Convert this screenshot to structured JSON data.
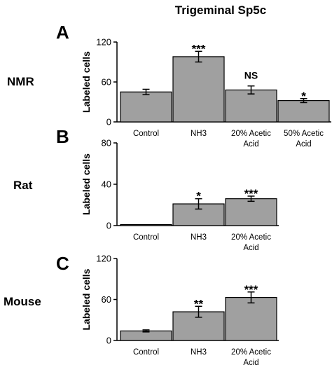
{
  "title": "Trigeminal Sp5c",
  "bar_color": "#a0a0a0",
  "chart_data": [
    {
      "type": "bar",
      "panel": "A",
      "species": "NMR",
      "ylabel": "Labeled cells",
      "ylim": [
        0,
        120
      ],
      "yticks": [
        0,
        60,
        120
      ],
      "categories": [
        [
          "Control"
        ],
        [
          "NH3"
        ],
        [
          "20% Acetic",
          "Acid"
        ],
        [
          "50% Acetic",
          "Acid"
        ]
      ],
      "values": [
        45,
        98,
        48,
        32
      ],
      "errors": [
        4,
        8,
        6,
        3
      ],
      "significance": [
        "",
        "***",
        "NS",
        "*"
      ]
    },
    {
      "type": "bar",
      "panel": "B",
      "species": "Rat",
      "ylabel": "Labeled cells",
      "ylim": [
        0,
        80
      ],
      "yticks": [
        0,
        40,
        80
      ],
      "categories": [
        [
          "Control"
        ],
        [
          "NH3"
        ],
        [
          "20% Acetic",
          "Acid"
        ]
      ],
      "values": [
        0,
        21,
        26
      ],
      "errors": [
        0,
        5,
        2.5
      ],
      "significance": [
        "",
        "*",
        "***"
      ]
    },
    {
      "type": "bar",
      "panel": "C",
      "species": "Mouse",
      "ylabel": "Labeled cells",
      "ylim": [
        0,
        120
      ],
      "yticks": [
        0,
        60,
        120
      ],
      "categories": [
        [
          "Control"
        ],
        [
          "NH3"
        ],
        [
          "20% Acetic",
          "Acid"
        ]
      ],
      "values": [
        14,
        42,
        63
      ],
      "errors": [
        1.5,
        8,
        8
      ],
      "significance": [
        "",
        "**",
        "***"
      ]
    }
  ]
}
